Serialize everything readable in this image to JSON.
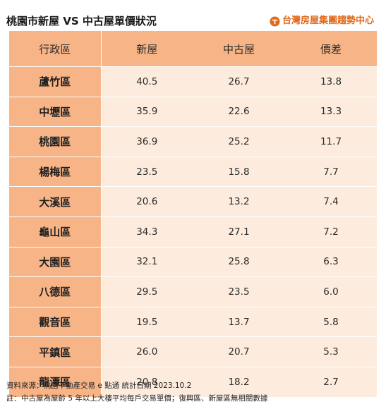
{
  "title": "桃園市新屋 VS 中古屋單價狀況",
  "brand": {
    "name": "台灣房屋集團趨勢中心",
    "logo_icon": "taiwan-realty-logo-icon",
    "color": "#e06a1c"
  },
  "colors": {
    "header_bg": "#f7b487",
    "cell_bg": "#fdecdd"
  },
  "table": {
    "headers": [
      "行政區",
      "新屋",
      "中古屋",
      "價差"
    ],
    "rows": [
      {
        "district": "蘆竹區",
        "new": "40.5",
        "old": "26.7",
        "diff": "13.8"
      },
      {
        "district": "中壢區",
        "new": "35.9",
        "old": "22.6",
        "diff": "13.3"
      },
      {
        "district": "桃園區",
        "new": "36.9",
        "old": "25.2",
        "diff": "11.7"
      },
      {
        "district": "楊梅區",
        "new": "23.5",
        "old": "15.8",
        "diff": "7.7"
      },
      {
        "district": "大溪區",
        "new": "20.6",
        "old": "13.2",
        "diff": "7.4"
      },
      {
        "district": "龜山區",
        "new": "34.3",
        "old": "27.1",
        "diff": "7.2"
      },
      {
        "district": "大園區",
        "new": "32.1",
        "old": "25.8",
        "diff": "6.3"
      },
      {
        "district": "八德區",
        "new": "29.5",
        "old": "23.5",
        "diff": "6.0"
      },
      {
        "district": "觀音區",
        "new": "19.5",
        "old": "13.7",
        "diff": "5.8"
      },
      {
        "district": "平鎮區",
        "new": "26.0",
        "old": "20.7",
        "diff": "5.3"
      },
      {
        "district": "龍潭區",
        "new": "20.8",
        "old": "18.2",
        "diff": "2.7"
      }
    ]
  },
  "footer": {
    "source": "資料來源：桃園不動產交易 e 點通  統計日期 2023.10.2",
    "note": "註：中古屋為屋齡 5 年以上大樓平均每戶交易單價；復興區、新屋區無相關數據"
  }
}
